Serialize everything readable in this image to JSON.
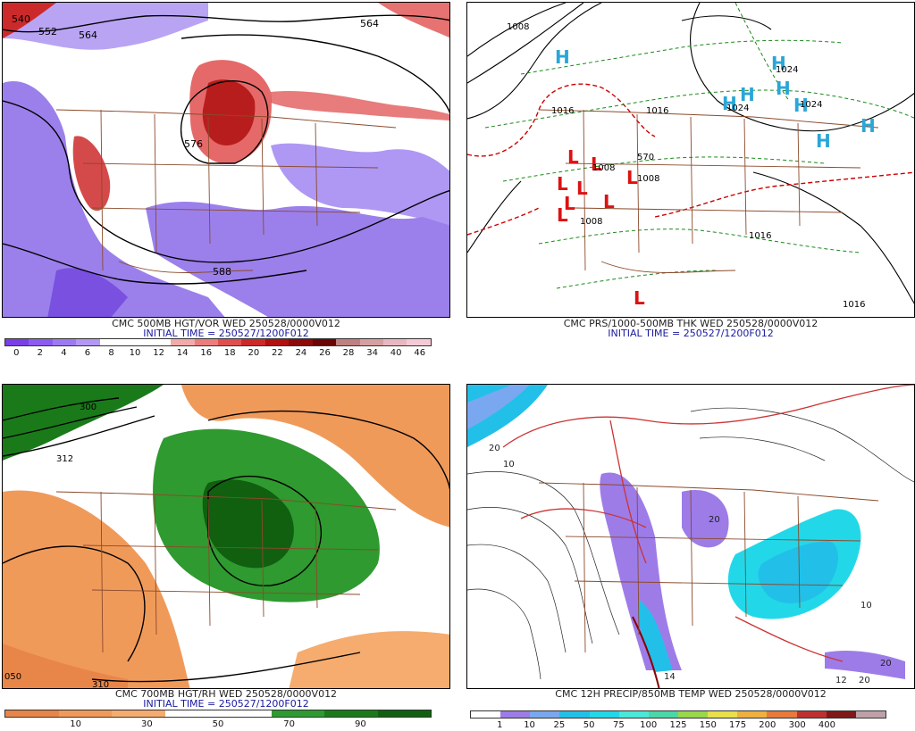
{
  "panels": [
    {
      "id": "vort",
      "caption": "CMC 500MB HGT/VOR WED 250528/0000V012",
      "initial": "INITIAL TIME = 250527/1200F012",
      "colorbar": {
        "colors": [
          "#7a3fe6",
          "#8c5cf0",
          "#9e7af2",
          "#b497f4",
          "#ffffff",
          "#ffffff",
          "#ffffff",
          "#f2aaaa",
          "#ec7d7d",
          "#e04f4f",
          "#cc2a2a",
          "#b01010",
          "#8c0a0a",
          "#6a0505",
          "#c08080",
          "#d6a0a0",
          "#e8b8c0",
          "#f5cad6"
        ],
        "labels": [
          "0",
          "2",
          "4",
          "6",
          "8",
          "10",
          "12",
          "14",
          "16",
          "18",
          "20",
          "22",
          "24",
          "26",
          "28",
          "34",
          "40",
          "46"
        ]
      },
      "contours": [
        "540",
        "552",
        "564",
        "576",
        "588",
        "564"
      ]
    },
    {
      "id": "pres",
      "caption": "CMC PRS/1000-500MB THK WED 250528/0000V012",
      "initial": "INITIAL TIME = 250527/1200F012",
      "highs": [
        "H",
        "H",
        "H",
        "H",
        "H",
        "H",
        "H",
        "H"
      ],
      "lows": [
        "L",
        "L",
        "L",
        "L",
        "L",
        "L",
        "L",
        "L",
        "L"
      ],
      "isobars": [
        "1008",
        "1016",
        "1008",
        "1008",
        "1008",
        "1016",
        "1024",
        "1024",
        "1024",
        "1016",
        "1016",
        "570"
      ]
    },
    {
      "id": "rh",
      "caption": "CMC 700MB HGT/RH WED 250528/0000V012",
      "initial": "INITIAL TIME = 250527/1200F012",
      "colorbar": {
        "colors": [
          "#e8864a",
          "#f09a5a",
          "#f5ac6e",
          "#ffffff",
          "#ffffff",
          "#2f9a2f",
          "#1a7a1a",
          "#106010"
        ],
        "labels": [
          "10",
          "30",
          "50",
          "70",
          "90"
        ]
      },
      "contours": [
        "300",
        "312",
        "310",
        "050"
      ]
    },
    {
      "id": "precip",
      "caption": "CMC 12H PRECIP/850MB TEMP WED 250528/0000V012",
      "colorbar": {
        "colors": [
          "#ffffff",
          "#9d7ce8",
          "#7aa8f0",
          "#22c0e8",
          "#22d8e8",
          "#4ae8d8",
          "#4ad8a8",
          "#9ad84a",
          "#e8e04a",
          "#f0b040",
          "#e87a3a",
          "#c03030",
          "#801818",
          "#c0a0a8"
        ],
        "labels": [
          "1",
          "10",
          "25",
          "50",
          "75",
          "100",
          "125",
          "150",
          "175",
          "200",
          "300",
          "400"
        ]
      },
      "contours": [
        "20",
        "10",
        "20",
        "10",
        "20",
        "12",
        "20",
        "14"
      ]
    }
  ]
}
